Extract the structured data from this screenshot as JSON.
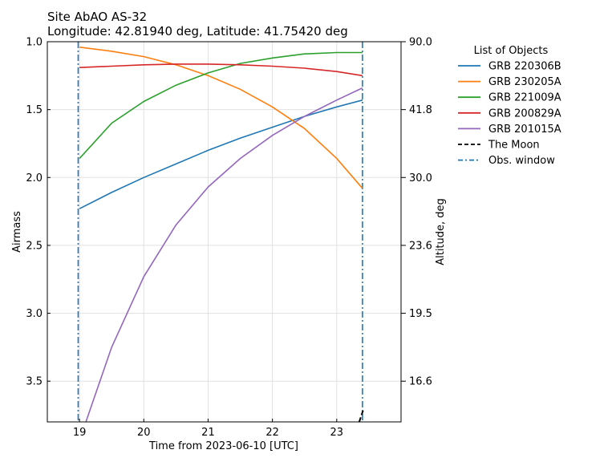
{
  "chart_data": {
    "type": "line",
    "title": "Site AbAO AS-32",
    "subtitle": "Longitude: 42.81940 deg, Latitude: 41.75420 deg",
    "xlabel": "Time from 2023-06-10 [UTC]",
    "ylabel": "Airmass",
    "ylabel_right": "Altitude, deg",
    "xlim": [
      18.5,
      24.0
    ],
    "ylim": [
      1.0,
      3.8
    ],
    "y_inverted": true,
    "grid": true,
    "x_ticks": [
      "19",
      "20",
      "21",
      "22",
      "23"
    ],
    "y_ticks": [
      "1.0",
      "1.5",
      "2.0",
      "2.5",
      "3.0",
      "3.5"
    ],
    "y_ticks_right": [
      "90.0",
      "41.8",
      "30.0",
      "23.6",
      "19.5",
      "16.6"
    ],
    "legend_title": "List of Objects",
    "legend_placement": "outside-right",
    "series": [
      {
        "name": "GRB 220306B",
        "color": "#1f77b4",
        "style": "solid",
        "x": [
          19.0,
          19.5,
          20.0,
          20.5,
          21.0,
          21.5,
          22.0,
          22.5,
          23.0,
          23.4
        ],
        "y": [
          2.23,
          2.11,
          2.0,
          1.9,
          1.8,
          1.71,
          1.63,
          1.55,
          1.48,
          1.43
        ]
      },
      {
        "name": "GRB 230205A",
        "color": "#ff7f0e",
        "style": "solid",
        "x": [
          19.0,
          19.5,
          20.0,
          20.5,
          21.0,
          21.5,
          22.0,
          22.5,
          23.0,
          23.4
        ],
        "y": [
          1.04,
          1.07,
          1.11,
          1.17,
          1.25,
          1.35,
          1.48,
          1.64,
          1.86,
          2.08
        ]
      },
      {
        "name": "GRB 221009A",
        "color": "#2ca02c",
        "style": "solid",
        "x": [
          19.0,
          19.5,
          20.0,
          20.5,
          21.0,
          21.5,
          22.0,
          22.5,
          23.0,
          23.4
        ],
        "y": [
          1.86,
          1.6,
          1.44,
          1.32,
          1.23,
          1.16,
          1.12,
          1.09,
          1.08,
          1.08
        ]
      },
      {
        "name": "GRB 200829A",
        "color": "#d62728",
        "style": "solid",
        "x": [
          19.0,
          19.5,
          20.0,
          20.5,
          21.0,
          21.5,
          22.0,
          22.5,
          23.0,
          23.4
        ],
        "y": [
          1.19,
          1.18,
          1.17,
          1.165,
          1.165,
          1.17,
          1.18,
          1.195,
          1.22,
          1.25
        ]
      },
      {
        "name": "GRB 201015A",
        "color": "#9467bd",
        "style": "solid",
        "x": [
          19.1,
          19.5,
          20.0,
          20.5,
          21.0,
          21.5,
          22.0,
          22.5,
          23.0,
          23.4
        ],
        "y": [
          3.8,
          3.25,
          2.73,
          2.35,
          2.07,
          1.86,
          1.69,
          1.55,
          1.43,
          1.34
        ]
      },
      {
        "name": "The Moon",
        "color": "#000000",
        "style": "dashed",
        "x": [
          23.35,
          23.42
        ],
        "y": [
          3.8,
          3.7
        ]
      },
      {
        "name": "Obs. window",
        "color": "#1f77b4",
        "style": "dashdot",
        "vlines": [
          18.98,
          23.4
        ]
      }
    ]
  }
}
